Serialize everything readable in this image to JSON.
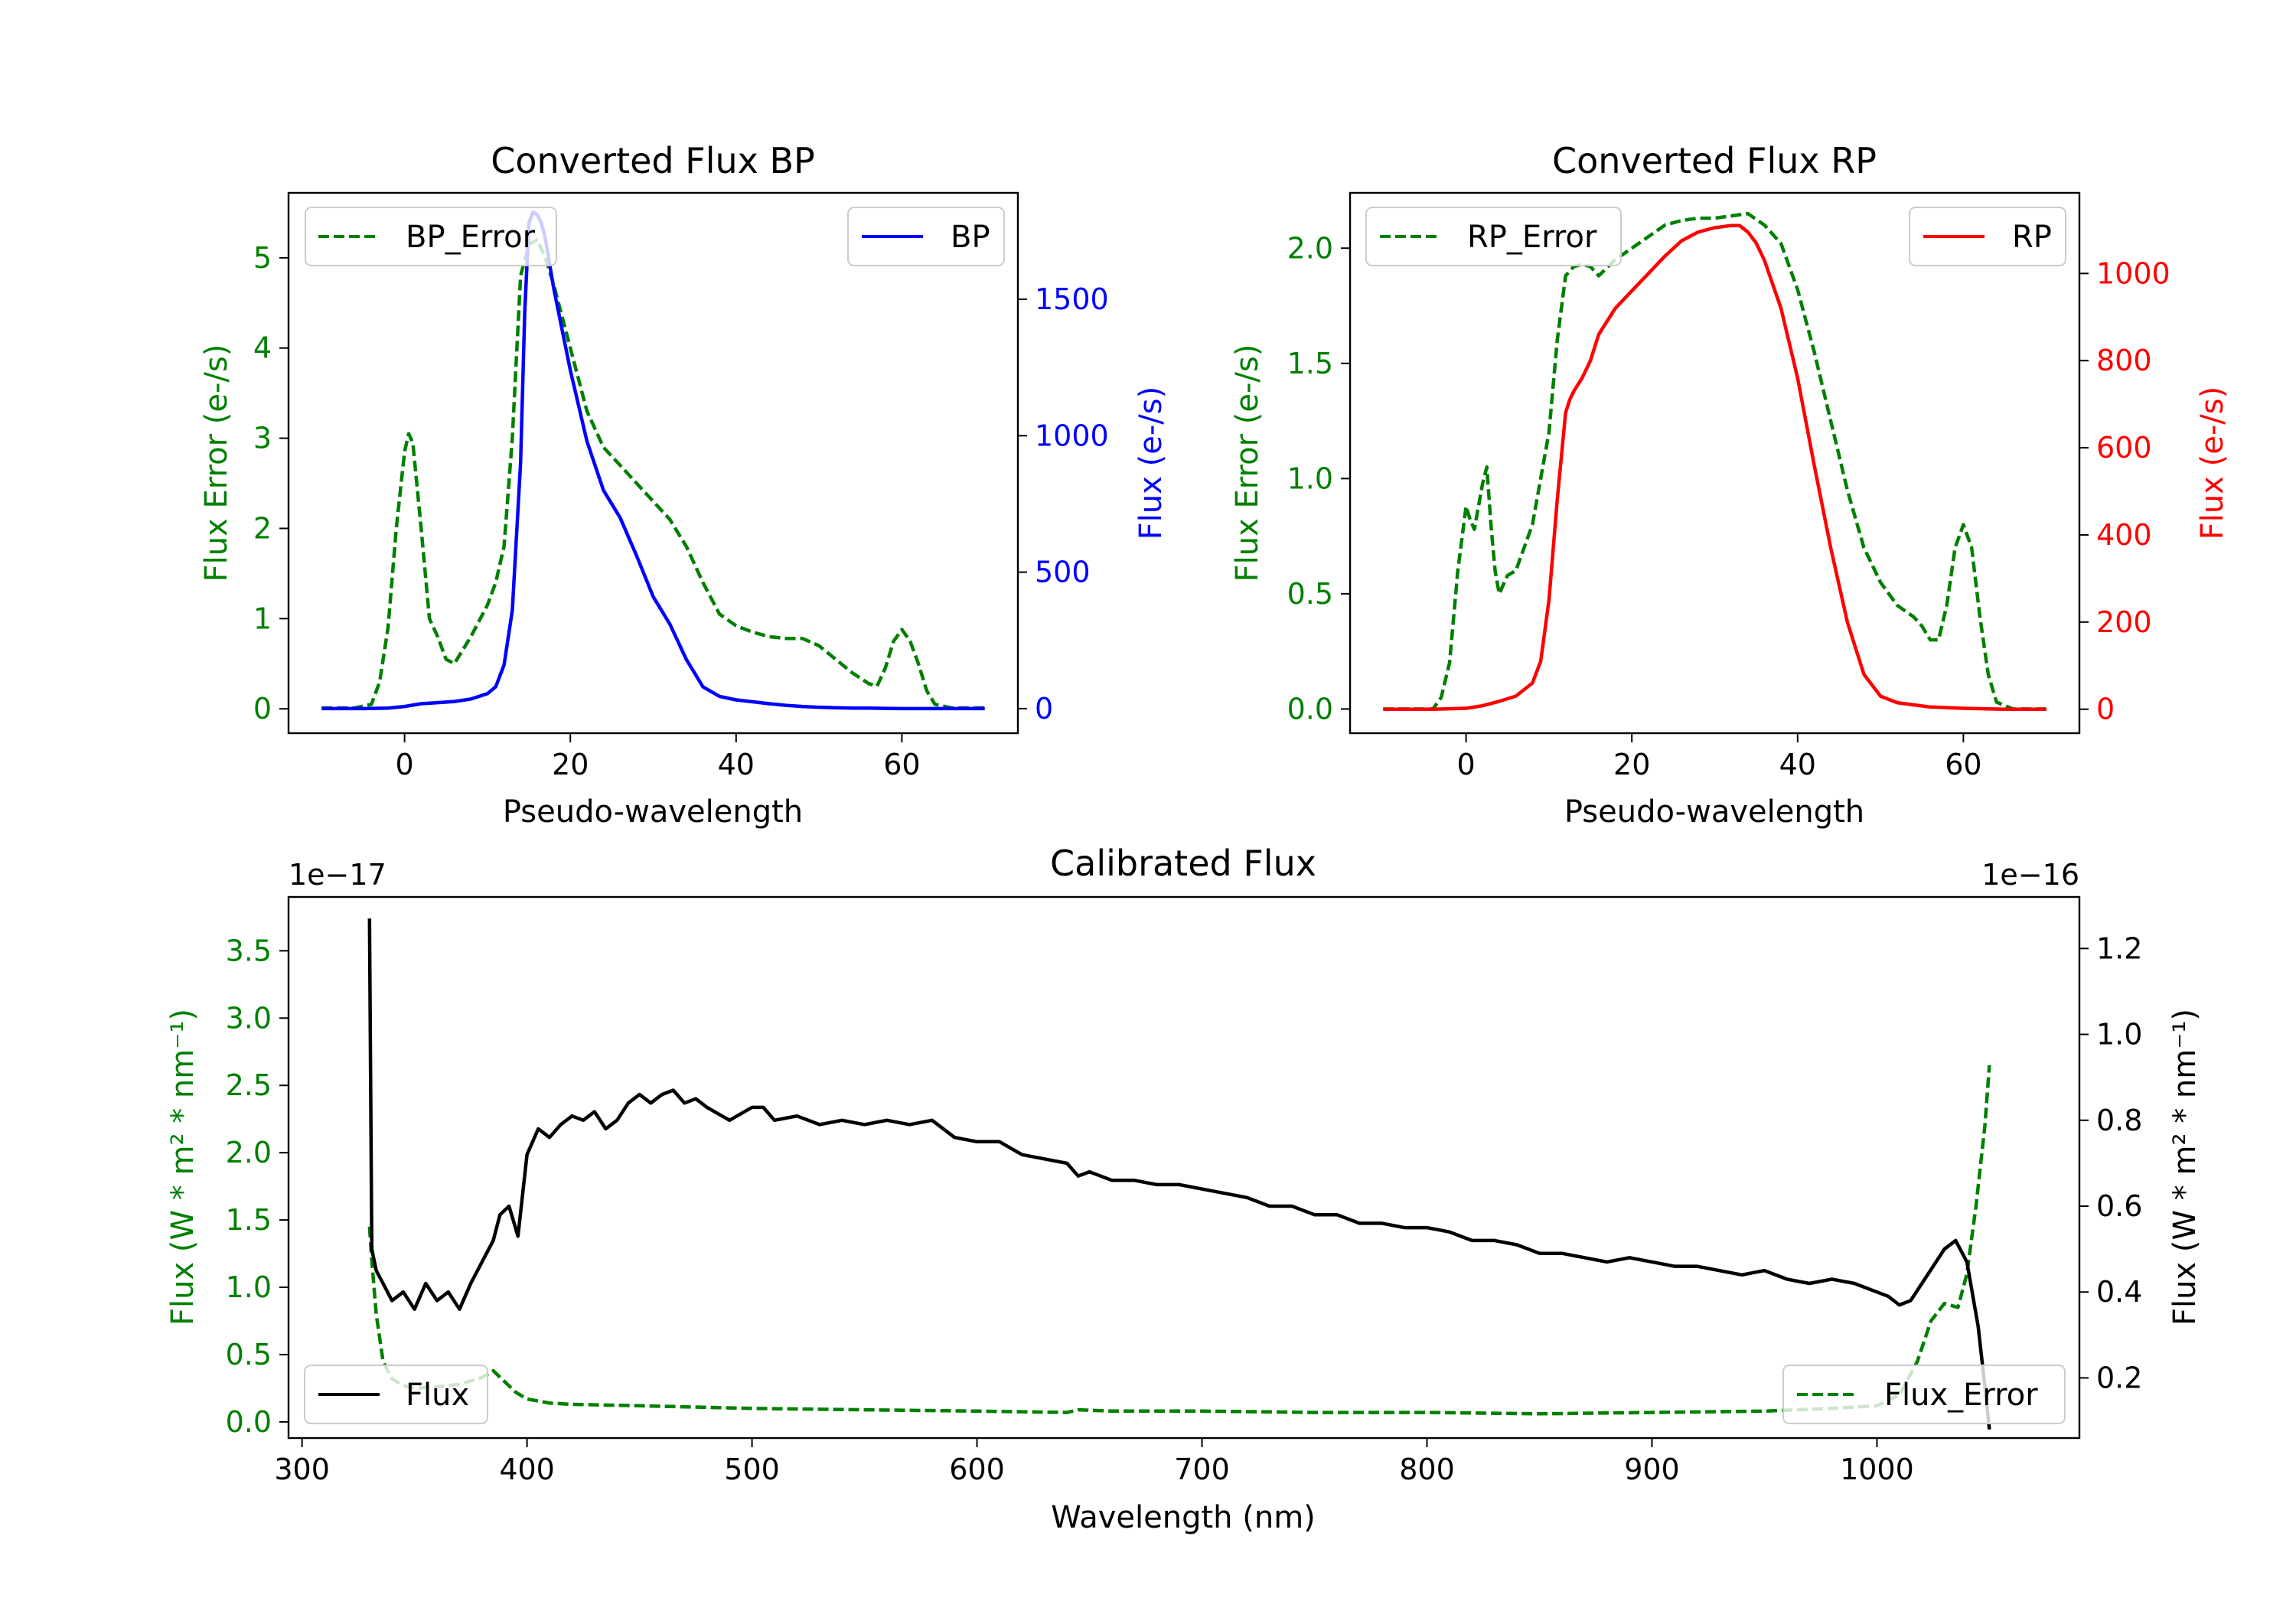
{
  "colors": {
    "error": "#008000",
    "bp": "#0000ff",
    "rp": "#ff0000",
    "flux": "#000000",
    "axis": "#000000"
  },
  "chart_data": [
    {
      "type": "line",
      "title": "Converted Flux BP",
      "xlabel": "Pseudo-wavelength",
      "ylabel_left": "Flux Error (e-/s)",
      "ylabel_right": "Flux (e-/s)",
      "xlim": [
        -14,
        74
      ],
      "xticks": [
        0,
        20,
        40,
        60
      ],
      "xtick_labels": [
        "0",
        "20",
        "40",
        "60"
      ],
      "ylim_left": [
        -0.27,
        5.72
      ],
      "yticks_left": [
        0,
        1,
        2,
        3,
        4,
        5
      ],
      "ytick_labels_left": [
        "0",
        "1",
        "2",
        "3",
        "4",
        "5"
      ],
      "ylim_right": [
        -90,
        1890
      ],
      "yticks_right": [
        0,
        500,
        1000,
        1500
      ],
      "ytick_labels_right": [
        "0",
        "500",
        "1000",
        "1500"
      ],
      "legend_left": {
        "label": "BP_Error",
        "placement": "upper left"
      },
      "legend_right": {
        "label": "BP",
        "placement": "upper right"
      },
      "series": [
        {
          "name": "BP_Error",
          "axis": "left",
          "style": "dashed",
          "color": "#008000",
          "x": [
            -10,
            -6,
            -4,
            -3,
            -2,
            -1,
            0,
            0.5,
            1,
            2,
            3,
            4,
            5,
            6,
            8,
            10,
            11,
            12,
            13,
            14,
            15,
            16,
            17,
            18,
            20,
            22,
            24,
            26,
            28,
            30,
            32,
            34,
            36,
            38,
            40,
            42,
            44,
            46,
            48,
            50,
            52,
            54,
            56,
            57,
            58,
            59,
            60,
            61,
            62,
            63,
            64,
            66,
            70
          ],
          "y": [
            0.01,
            0.01,
            0.05,
            0.3,
            0.9,
            2.0,
            2.85,
            3.05,
            2.95,
            2.0,
            1.0,
            0.8,
            0.55,
            0.5,
            0.8,
            1.15,
            1.4,
            1.8,
            3.0,
            4.8,
            5.15,
            5.2,
            5.0,
            4.7,
            4.0,
            3.3,
            2.9,
            2.7,
            2.5,
            2.3,
            2.1,
            1.8,
            1.4,
            1.05,
            0.92,
            0.85,
            0.8,
            0.78,
            0.78,
            0.7,
            0.55,
            0.4,
            0.28,
            0.25,
            0.45,
            0.75,
            0.88,
            0.75,
            0.5,
            0.2,
            0.05,
            0.01,
            0.01
          ]
        },
        {
          "name": "BP",
          "axis": "right",
          "style": "solid",
          "color": "#0000ff",
          "x": [
            -10,
            -5,
            -2,
            0,
            2,
            4,
            6,
            8,
            10,
            11,
            12,
            13,
            14,
            14.5,
            15,
            15.5,
            16,
            16.5,
            17,
            18,
            20,
            22,
            24,
            26,
            28,
            30,
            32,
            34,
            36,
            38,
            40,
            42,
            44,
            46,
            48,
            50,
            52,
            54,
            56,
            58,
            60,
            65,
            70
          ],
          "y": [
            0,
            0,
            2,
            8,
            18,
            22,
            26,
            35,
            55,
            80,
            160,
            360,
            900,
            1450,
            1780,
            1820,
            1810,
            1780,
            1720,
            1540,
            1240,
            980,
            800,
            700,
            560,
            410,
            310,
            180,
            80,
            45,
            32,
            25,
            18,
            12,
            8,
            5,
            3,
            2,
            2,
            1,
            0,
            0,
            0
          ]
        }
      ]
    },
    {
      "type": "line",
      "title": "Converted Flux RP",
      "xlabel": "Pseudo-wavelength",
      "ylabel_left": "Flux Error (e-/s)",
      "ylabel_right": "Flux (e-/s)",
      "xlim": [
        -14,
        74
      ],
      "xticks": [
        0,
        20,
        40,
        60
      ],
      "xtick_labels": [
        "0",
        "20",
        "40",
        "60"
      ],
      "ylim_left": [
        -0.105,
        2.24
      ],
      "yticks_left": [
        0,
        0.5,
        1,
        1.5,
        2
      ],
      "ytick_labels_left": [
        "0.0",
        "0.5",
        "1.0",
        "1.5",
        "2.0"
      ],
      "ylim_right": [
        -55,
        1185
      ],
      "yticks_right": [
        0,
        200,
        400,
        600,
        800,
        1000
      ],
      "ytick_labels_right": [
        "0",
        "200",
        "400",
        "600",
        "800",
        "1000"
      ],
      "legend_left": {
        "label": "RP_Error",
        "placement": "upper left"
      },
      "legend_right": {
        "label": "RP",
        "placement": "upper right"
      },
      "series": [
        {
          "name": "RP_Error",
          "axis": "left",
          "style": "dashed",
          "color": "#008000",
          "x": [
            -10,
            -4,
            -3,
            -2,
            -1,
            0,
            0.5,
            1,
            2,
            2.5,
            3,
            3.5,
            4,
            5,
            6,
            8,
            10,
            11,
            12,
            13,
            14,
            15,
            16,
            18,
            20,
            22,
            24,
            26,
            28,
            30,
            32,
            34,
            36,
            38,
            40,
            42,
            44,
            46,
            48,
            50,
            52,
            54,
            55,
            56,
            57,
            58,
            59,
            60,
            61,
            62,
            63,
            64,
            66,
            70
          ],
          "y": [
            0.0,
            0.0,
            0.05,
            0.2,
            0.6,
            0.88,
            0.82,
            0.78,
            0.98,
            1.05,
            0.8,
            0.6,
            0.5,
            0.58,
            0.6,
            0.8,
            1.2,
            1.6,
            1.88,
            1.92,
            1.93,
            1.92,
            1.88,
            1.95,
            2.0,
            2.05,
            2.1,
            2.12,
            2.13,
            2.13,
            2.14,
            2.15,
            2.1,
            2.02,
            1.82,
            1.55,
            1.25,
            0.95,
            0.7,
            0.55,
            0.45,
            0.4,
            0.36,
            0.3,
            0.3,
            0.45,
            0.7,
            0.8,
            0.7,
            0.4,
            0.15,
            0.03,
            0.0,
            0.0
          ]
        },
        {
          "name": "RP",
          "axis": "right",
          "style": "solid",
          "color": "#ff0000",
          "x": [
            -10,
            -4,
            -2,
            0,
            2,
            4,
            6,
            8,
            9,
            10,
            11,
            12,
            12.5,
            13,
            14,
            15,
            16,
            18,
            20,
            22,
            24,
            26,
            28,
            30,
            32,
            33,
            34,
            35,
            36,
            38,
            40,
            42,
            44,
            46,
            48,
            50,
            52,
            54,
            56,
            60,
            65,
            70
          ],
          "y": [
            0,
            0,
            1,
            2,
            8,
            18,
            30,
            60,
            110,
            250,
            480,
            680,
            710,
            730,
            760,
            800,
            860,
            920,
            960,
            1000,
            1040,
            1075,
            1095,
            1105,
            1110,
            1110,
            1095,
            1070,
            1030,
            920,
            760,
            560,
            370,
            200,
            80,
            30,
            15,
            10,
            5,
            2,
            0,
            0
          ]
        }
      ]
    },
    {
      "type": "line",
      "title": "Calibrated Flux",
      "xlabel": "Wavelength (nm)",
      "ylabel_left": "Flux (W * m² * nm⁻¹)",
      "ylabel_right": "Flux (W * m² * nm⁻¹)",
      "offset_left": "1e−17",
      "offset_right": "1e−16",
      "xlim": [
        294,
        1090
      ],
      "xticks": [
        300,
        400,
        500,
        600,
        700,
        800,
        900,
        1000
      ],
      "xtick_labels": [
        "300",
        "400",
        "500",
        "600",
        "700",
        "800",
        "900",
        "1000"
      ],
      "ylim_left": [
        -0.12,
        3.9
      ],
      "yticks_left": [
        0,
        0.5,
        1,
        1.5,
        2,
        2.5,
        3,
        3.5
      ],
      "ytick_labels_left": [
        "0.0",
        "0.5",
        "1.0",
        "1.5",
        "2.0",
        "2.5",
        "3.0",
        "3.5"
      ],
      "ylim_right": [
        0.06,
        1.32
      ],
      "yticks_right": [
        0.2,
        0.4,
        0.6,
        0.8,
        1.0,
        1.2
      ],
      "ytick_labels_right": [
        "0.2",
        "0.4",
        "0.6",
        "0.8",
        "1.0",
        "1.2"
      ],
      "legend_left": {
        "label": "Flux",
        "placement": "lower left"
      },
      "legend_right": {
        "label": "Flux_Error",
        "placement": "lower right"
      },
      "series": [
        {
          "name": "Flux_Error",
          "axis": "left",
          "style": "dashed",
          "color": "#008000",
          "x": [
            330,
            331,
            333,
            336,
            340,
            345,
            350,
            360,
            370,
            380,
            385,
            390,
            395,
            400,
            410,
            420,
            450,
            500,
            550,
            600,
            640,
            645,
            660,
            700,
            750,
            800,
            850,
            900,
            950,
            980,
            1000,
            1010,
            1018,
            1024,
            1030,
            1036,
            1040,
            1044,
            1048,
            1050
          ],
          "y": [
            1.45,
            1.2,
            0.8,
            0.45,
            0.32,
            0.27,
            0.25,
            0.26,
            0.28,
            0.33,
            0.38,
            0.3,
            0.22,
            0.17,
            0.14,
            0.13,
            0.12,
            0.1,
            0.09,
            0.08,
            0.07,
            0.09,
            0.08,
            0.08,
            0.07,
            0.07,
            0.06,
            0.07,
            0.08,
            0.1,
            0.12,
            0.2,
            0.45,
            0.75,
            0.88,
            0.85,
            1.1,
            1.6,
            2.2,
            2.65
          ]
        },
        {
          "name": "Flux",
          "axis": "right",
          "style": "solid",
          "color": "#000000",
          "x": [
            330,
            331,
            333,
            336,
            340,
            345,
            350,
            355,
            360,
            365,
            370,
            375,
            380,
            385,
            388,
            392,
            396,
            400,
            405,
            410,
            415,
            420,
            425,
            430,
            435,
            440,
            445,
            450,
            455,
            460,
            465,
            470,
            475,
            480,
            490,
            500,
            505,
            510,
            520,
            530,
            540,
            550,
            560,
            570,
            580,
            590,
            600,
            610,
            620,
            630,
            640,
            645,
            650,
            655,
            660,
            670,
            680,
            690,
            700,
            710,
            720,
            730,
            740,
            750,
            760,
            770,
            780,
            790,
            800,
            810,
            820,
            830,
            840,
            850,
            860,
            870,
            880,
            890,
            900,
            910,
            920,
            930,
            940,
            950,
            960,
            970,
            980,
            990,
            1000,
            1005,
            1010,
            1015,
            1020,
            1025,
            1030,
            1035,
            1040,
            1045,
            1048,
            1050
          ],
          "y": [
            1.27,
            0.5,
            0.45,
            0.42,
            0.38,
            0.4,
            0.36,
            0.42,
            0.38,
            0.4,
            0.36,
            0.42,
            0.47,
            0.52,
            0.58,
            0.6,
            0.53,
            0.72,
            0.78,
            0.76,
            0.79,
            0.81,
            0.8,
            0.82,
            0.78,
            0.8,
            0.84,
            0.86,
            0.84,
            0.86,
            0.87,
            0.84,
            0.85,
            0.83,
            0.8,
            0.83,
            0.83,
            0.8,
            0.81,
            0.79,
            0.8,
            0.79,
            0.8,
            0.79,
            0.8,
            0.76,
            0.75,
            0.75,
            0.72,
            0.71,
            0.7,
            0.67,
            0.68,
            0.67,
            0.66,
            0.66,
            0.65,
            0.65,
            0.64,
            0.63,
            0.62,
            0.6,
            0.6,
            0.58,
            0.58,
            0.56,
            0.56,
            0.55,
            0.55,
            0.54,
            0.52,
            0.52,
            0.51,
            0.49,
            0.49,
            0.48,
            0.47,
            0.48,
            0.47,
            0.46,
            0.46,
            0.45,
            0.44,
            0.45,
            0.43,
            0.42,
            0.43,
            0.42,
            0.4,
            0.39,
            0.37,
            0.38,
            0.42,
            0.46,
            0.5,
            0.52,
            0.47,
            0.32,
            0.18,
            0.08
          ]
        }
      ]
    }
  ]
}
